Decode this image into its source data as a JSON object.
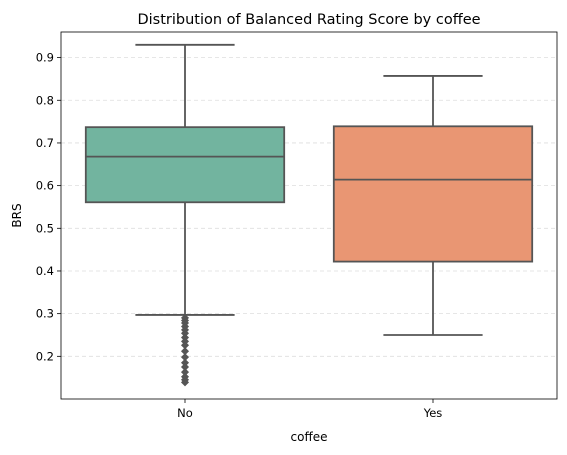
{
  "chart_data": {
    "type": "box",
    "title": "Distribution of Balanced Rating Score by coffee",
    "xlabel": "coffee",
    "ylabel": "BRS",
    "categories": [
      "No",
      "Yes"
    ],
    "ylim": [
      0.1,
      0.96
    ],
    "yticks": [
      0.2,
      0.3,
      0.4,
      0.5,
      0.6,
      0.7,
      0.8,
      0.9
    ],
    "grid": "y-dashed",
    "colors": [
      "#72b49f",
      "#e99673"
    ],
    "line_color": "#555555",
    "boxes": [
      {
        "category": "No",
        "whisker_low": 0.297,
        "q1": 0.561,
        "median": 0.668,
        "q3": 0.737,
        "whisker_high": 0.93,
        "outliers": [
          0.29,
          0.284,
          0.278,
          0.27,
          0.262,
          0.254,
          0.244,
          0.235,
          0.226,
          0.212,
          0.198,
          0.185,
          0.175,
          0.163,
          0.152,
          0.145,
          0.139
        ]
      },
      {
        "category": "Yes",
        "whisker_low": 0.25,
        "q1": 0.422,
        "median": 0.614,
        "q3": 0.739,
        "whisker_high": 0.857,
        "outliers": []
      }
    ]
  }
}
